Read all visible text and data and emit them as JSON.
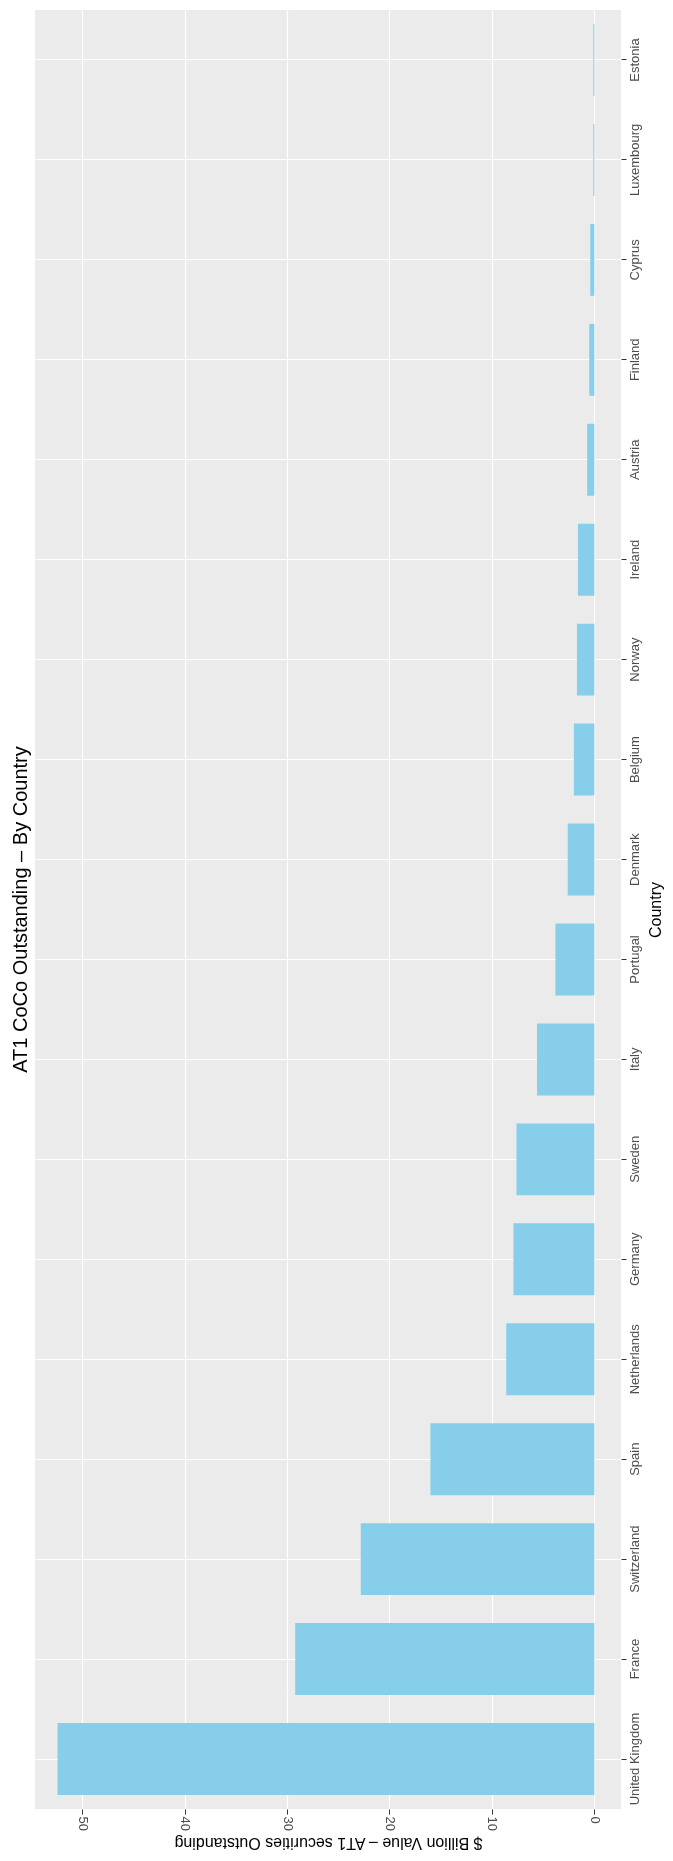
{
  "chart_data": {
    "type": "bar",
    "orientation": "horizontal",
    "title": "AT1 CoCo Outstanding – By Country",
    "xlabel": "$ Billion Value – AT1 securities Outstanding",
    "ylabel": "Country",
    "categories": [
      "Estonia",
      "Luxembourg",
      "Cyprus",
      "Finland",
      "Austria",
      "Ireland",
      "Norway",
      "Belgium",
      "Denmark",
      "Portugal",
      "Italy",
      "Sweden",
      "Germany",
      "Netherlands",
      "Spain",
      "Switzerland",
      "France",
      "United Kingdom"
    ],
    "values": [
      0.1,
      0.1,
      0.4,
      0.5,
      0.7,
      1.6,
      1.7,
      2.0,
      2.6,
      3.8,
      5.6,
      7.6,
      7.9,
      8.6,
      16.0,
      22.8,
      29.2,
      52.4
    ],
    "color": "#87ceeb",
    "xlim": [
      54.6,
      -2.6
    ],
    "xticks": [
      50,
      40,
      30,
      20,
      10,
      0
    ],
    "grid": true
  }
}
